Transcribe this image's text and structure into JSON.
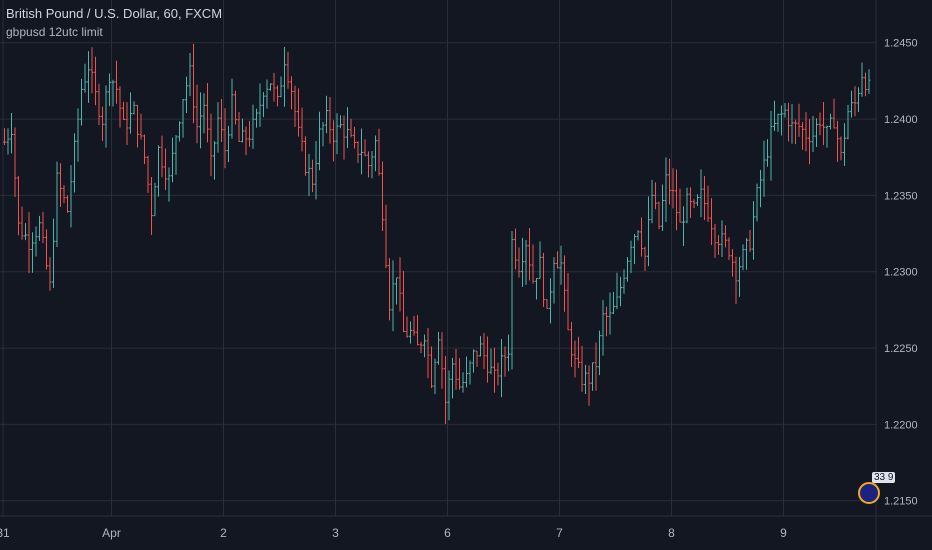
{
  "header": {
    "title": "British Pound / U.S. Dollar, 60, FXCM",
    "indicator": "gbpusd 12utc limit",
    "badge_value": "33 9"
  },
  "colors": {
    "background": "#131722",
    "grid": "#2a2e39",
    "up": "#4db6ac",
    "down": "#ef5350",
    "text": "#b2b5be"
  },
  "chart_data": {
    "type": "ohlc",
    "ylim": [
      1.214,
      1.2478
    ],
    "y_ticks": [
      {
        "value": 1.245,
        "label": "1.2450"
      },
      {
        "value": 1.24,
        "label": "1.2400"
      },
      {
        "value": 1.235,
        "label": "1.2350"
      },
      {
        "value": 1.23,
        "label": "1.2300"
      },
      {
        "value": 1.225,
        "label": "1.2250"
      },
      {
        "value": 1.22,
        "label": "1.2200"
      },
      {
        "value": 1.215,
        "label": "1.2150"
      }
    ],
    "x_ticks": [
      {
        "bar": 0,
        "label": "31"
      },
      {
        "bar": 31,
        "label": "Apr"
      },
      {
        "bar": 63,
        "label": "2"
      },
      {
        "bar": 95,
        "label": "3"
      },
      {
        "bar": 127,
        "label": "6"
      },
      {
        "bar": 159,
        "label": "7"
      },
      {
        "bar": 191,
        "label": "8"
      },
      {
        "bar": 223,
        "label": "9"
      }
    ],
    "anchors": [
      [
        0,
        1.2385
      ],
      [
        2,
        1.2395
      ],
      [
        4,
        1.233
      ],
      [
        7,
        1.232
      ],
      [
        10,
        1.233
      ],
      [
        13,
        1.229
      ],
      [
        15,
        1.236
      ],
      [
        18,
        1.234
      ],
      [
        20,
        1.238
      ],
      [
        22,
        1.242
      ],
      [
        24,
        1.2435
      ],
      [
        26,
        1.2415
      ],
      [
        28,
        1.24
      ],
      [
        30,
        1.243
      ],
      [
        32,
        1.242
      ],
      [
        34,
        1.2395
      ],
      [
        37,
        1.2405
      ],
      [
        40,
        1.2375
      ],
      [
        42,
        1.234
      ],
      [
        44,
        1.238
      ],
      [
        47,
        1.236
      ],
      [
        49,
        1.239
      ],
      [
        51,
        1.2415
      ],
      [
        53,
        1.243
      ],
      [
        55,
        1.2395
      ],
      [
        57,
        1.241
      ],
      [
        59,
        1.237
      ],
      [
        61,
        1.24
      ],
      [
        63,
        1.238
      ],
      [
        65,
        1.241
      ],
      [
        67,
        1.2385
      ],
      [
        70,
        1.239
      ],
      [
        72,
        1.24
      ],
      [
        74,
        1.242
      ],
      [
        76,
        1.2425
      ],
      [
        78,
        1.241
      ],
      [
        80,
        1.244
      ],
      [
        82,
        1.242
      ],
      [
        84,
        1.239
      ],
      [
        86,
        1.237
      ],
      [
        88,
        1.236
      ],
      [
        90,
        1.239
      ],
      [
        92,
        1.24
      ],
      [
        94,
        1.239
      ],
      [
        96,
        1.2395
      ],
      [
        98,
        1.239
      ],
      [
        100,
        1.238
      ],
      [
        102,
        1.238
      ],
      [
        104,
        1.237
      ],
      [
        106,
        1.2385
      ],
      [
        108,
        1.234
      ],
      [
        110,
        1.228
      ],
      [
        112,
        1.23
      ],
      [
        114,
        1.226
      ],
      [
        116,
        1.226
      ],
      [
        118,
        1.225
      ],
      [
        120,
        1.226
      ],
      [
        122,
        1.223
      ],
      [
        124,
        1.226
      ],
      [
        126,
        1.2215
      ],
      [
        128,
        1.224
      ],
      [
        130,
        1.2225
      ],
      [
        132,
        1.223
      ],
      [
        134,
        1.2245
      ],
      [
        136,
        1.225
      ],
      [
        138,
        1.224
      ],
      [
        140,
        1.223
      ],
      [
        142,
        1.224
      ],
      [
        144,
        1.225
      ],
      [
        145,
        1.232
      ],
      [
        147,
        1.2305
      ],
      [
        149,
        1.232
      ],
      [
        151,
        1.2295
      ],
      [
        153,
        1.2305
      ],
      [
        155,
        1.227
      ],
      [
        157,
        1.231
      ],
      [
        159,
        1.2305
      ],
      [
        161,
        1.226
      ],
      [
        163,
        1.224
      ],
      [
        165,
        1.223
      ],
      [
        167,
        1.223
      ],
      [
        169,
        1.224
      ],
      [
        171,
        1.227
      ],
      [
        173,
        1.227
      ],
      [
        175,
        1.228
      ],
      [
        177,
        1.23
      ],
      [
        179,
        1.232
      ],
      [
        181,
        1.233
      ],
      [
        183,
        1.231
      ],
      [
        185,
        1.235
      ],
      [
        187,
        1.233
      ],
      [
        189,
        1.236
      ],
      [
        191,
        1.235
      ],
      [
        193,
        1.233
      ],
      [
        195,
        1.2345
      ],
      [
        197,
        1.234
      ],
      [
        199,
        1.235
      ],
      [
        201,
        1.234
      ],
      [
        203,
        1.2325
      ],
      [
        205,
        1.232
      ],
      [
        207,
        1.2315
      ],
      [
        209,
        1.23
      ],
      [
        211,
        1.231
      ],
      [
        213,
        1.232
      ],
      [
        215,
        1.235
      ],
      [
        217,
        1.237
      ],
      [
        219,
        1.239
      ],
      [
        221,
        1.24
      ],
      [
        223,
        1.2405
      ],
      [
        225,
        1.2395
      ],
      [
        227,
        1.2395
      ],
      [
        229,
        1.239
      ],
      [
        231,
        1.239
      ],
      [
        233,
        1.24
      ],
      [
        235,
        1.239
      ],
      [
        237,
        1.24
      ],
      [
        239,
        1.2375
      ],
      [
        241,
        1.2405
      ],
      [
        243,
        1.241
      ],
      [
        245,
        1.243
      ],
      [
        247,
        1.242
      ]
    ]
  }
}
